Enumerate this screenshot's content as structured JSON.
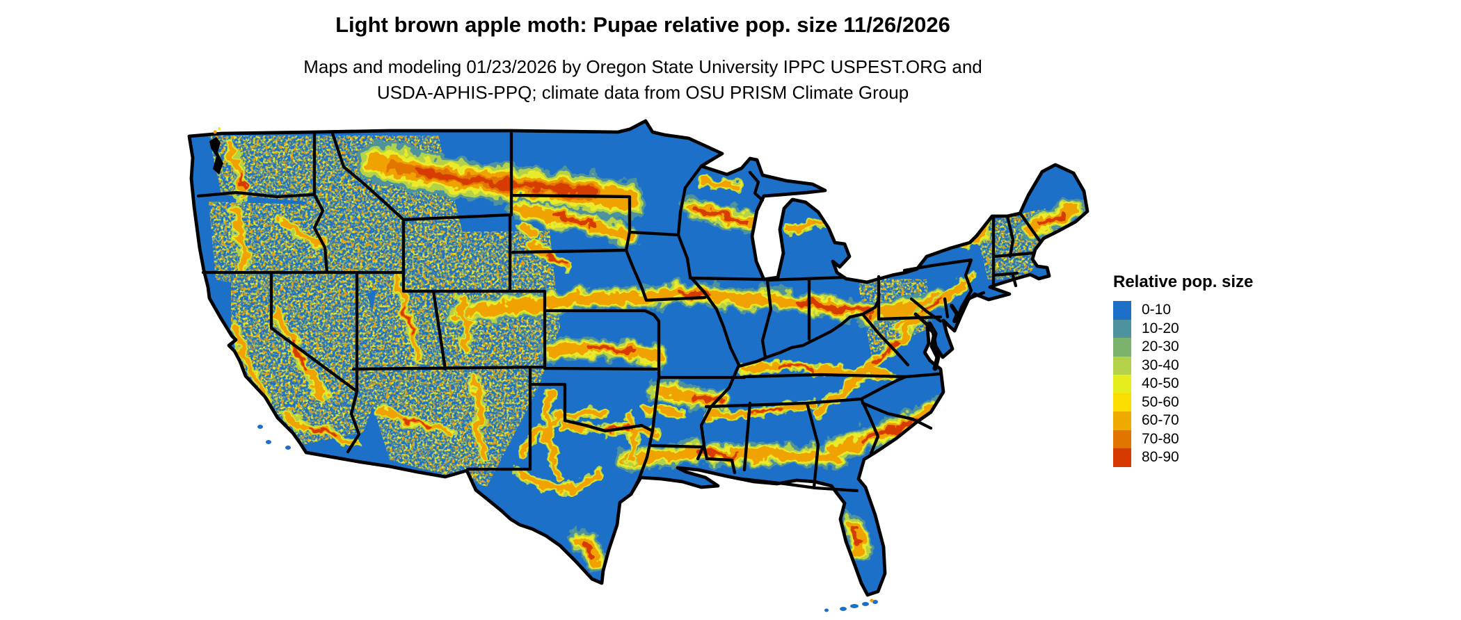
{
  "header": {
    "title": "Light brown apple moth: Pupae relative pop. size 11/26/2026",
    "subtitle_line1": "Maps and modeling 01/23/2026 by Oregon State University IPPC USPEST.ORG and",
    "subtitle_line2": "USDA-APHIS-PPQ; climate data from OSU PRISM Climate Group"
  },
  "legend": {
    "title": "Relative pop. size",
    "items": [
      {
        "label": "0-10",
        "color": "#1c70c8"
      },
      {
        "label": "10-20",
        "color": "#4d929c"
      },
      {
        "label": "20-30",
        "color": "#7cb36c"
      },
      {
        "label": "30-40",
        "color": "#b3d149"
      },
      {
        "label": "40-50",
        "color": "#e6ed1e"
      },
      {
        "label": "50-60",
        "color": "#f9dc00"
      },
      {
        "label": "60-70",
        "color": "#efaa02"
      },
      {
        "label": "70-80",
        "color": "#e27500"
      },
      {
        "label": "80-90",
        "color": "#d63a00"
      }
    ]
  },
  "map": {
    "region_depicted": "Contiguous United States",
    "base_color": "#1c70c8",
    "state_border_color": "#000000",
    "water_detail_color": "#000000",
    "background_color": "#ffffff",
    "value_classes": [
      "0-10",
      "10-20",
      "20-30",
      "30-40",
      "40-50",
      "50-60",
      "60-70",
      "70-80",
      "80-90"
    ]
  }
}
